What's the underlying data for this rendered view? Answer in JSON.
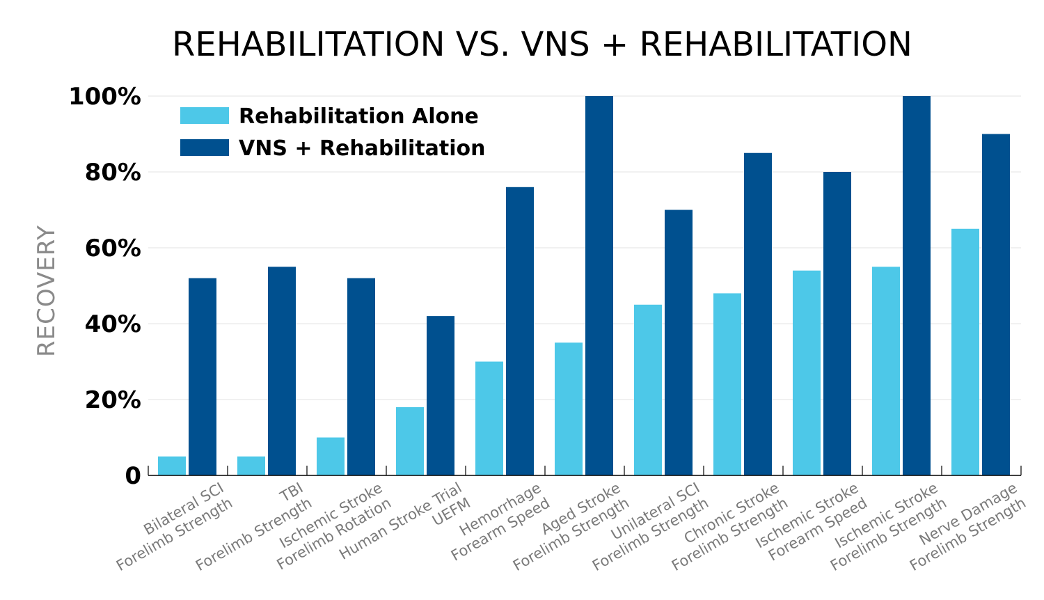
{
  "chart_data": {
    "type": "bar",
    "title": "REHABILITATION VS. VNS + REHABILITATION",
    "xlabel": "",
    "ylabel": "RECOVERY",
    "ylim": [
      0,
      100
    ],
    "yticks": [
      {
        "value": 0,
        "label": "0"
      },
      {
        "value": 20,
        "label": "20%"
      },
      {
        "value": 40,
        "label": "40%"
      },
      {
        "value": 60,
        "label": "60%"
      },
      {
        "value": 80,
        "label": "80%"
      },
      {
        "value": 100,
        "label": "100%"
      }
    ],
    "grid": true,
    "legend_position": "top-left",
    "categories": [
      [
        "Bilateral SCI",
        "Forelimb Strength"
      ],
      [
        "TBI",
        "Forelimb Strength"
      ],
      [
        "Ischemic Stroke",
        "Forelimb Rotation"
      ],
      [
        "Human Stroke Trial",
        "UEFM"
      ],
      [
        "Hemorrhage",
        "Forearm Speed"
      ],
      [
        "Aged Stroke",
        "Forelimb Strength"
      ],
      [
        "Unilateral SCI",
        "Forelimb Strength"
      ],
      [
        "Chronic Stroke",
        "Forelimb Strength"
      ],
      [
        "Ischemic Stroke",
        "Forearm Speed"
      ],
      [
        "Ischemic Stroke",
        "Forelimb Strength"
      ],
      [
        "Nerve Damage",
        "Forelimb Strength"
      ]
    ],
    "series": [
      {
        "name": "Rehabilitation Alone",
        "color": "#4dc8e8",
        "values": [
          5,
          5,
          10,
          18,
          30,
          35,
          45,
          48,
          54,
          55,
          65
        ]
      },
      {
        "name": "VNS + Rehabilitation",
        "color": "#00508f",
        "values": [
          52,
          55,
          52,
          42,
          76,
          100,
          70,
          85,
          80,
          100,
          90
        ]
      }
    ]
  }
}
